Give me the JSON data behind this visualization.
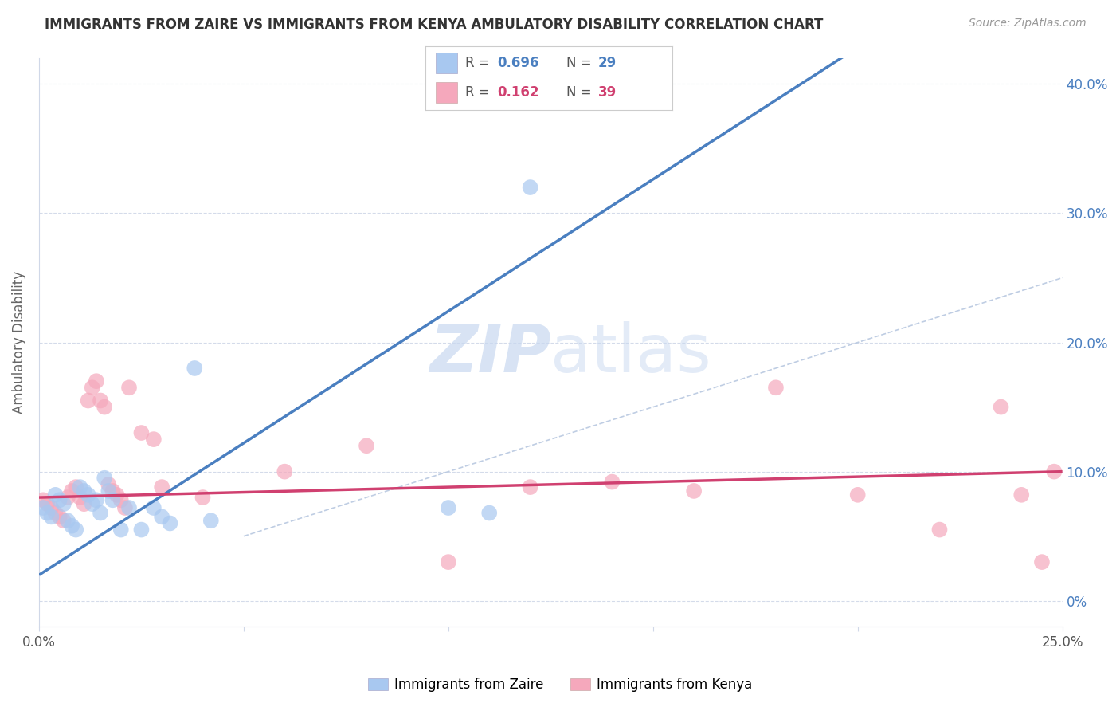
{
  "title": "IMMIGRANTS FROM ZAIRE VS IMMIGRANTS FROM KENYA AMBULATORY DISABILITY CORRELATION CHART",
  "source": "Source: ZipAtlas.com",
  "ylabel": "Ambulatory Disability",
  "xlim": [
    0.0,
    0.25
  ],
  "ylim": [
    -0.02,
    0.42
  ],
  "zaire_R": 0.696,
  "zaire_N": 29,
  "kenya_R": 0.162,
  "kenya_N": 39,
  "zaire_color": "#a8c8f0",
  "kenya_color": "#f5a8bc",
  "line_zaire_color": "#4a7fc0",
  "line_kenya_color": "#d04070",
  "diagonal_color": "#b8c8e0",
  "background_color": "#ffffff",
  "grid_color": "#d0d8e8",
  "zaire_points_x": [
    0.001,
    0.002,
    0.003,
    0.004,
    0.005,
    0.006,
    0.007,
    0.008,
    0.009,
    0.01,
    0.011,
    0.012,
    0.013,
    0.014,
    0.015,
    0.016,
    0.017,
    0.018,
    0.02,
    0.022,
    0.025,
    0.028,
    0.03,
    0.032,
    0.038,
    0.042,
    0.1,
    0.11,
    0.12
  ],
  "zaire_points_y": [
    0.072,
    0.068,
    0.065,
    0.082,
    0.078,
    0.075,
    0.062,
    0.058,
    0.055,
    0.088,
    0.085,
    0.082,
    0.075,
    0.078,
    0.068,
    0.095,
    0.085,
    0.078,
    0.055,
    0.072,
    0.055,
    0.072,
    0.065,
    0.06,
    0.18,
    0.062,
    0.072,
    0.068,
    0.32
  ],
  "kenya_points_x": [
    0.001,
    0.002,
    0.003,
    0.004,
    0.005,
    0.006,
    0.007,
    0.008,
    0.009,
    0.01,
    0.011,
    0.012,
    0.013,
    0.014,
    0.015,
    0.016,
    0.017,
    0.018,
    0.019,
    0.02,
    0.021,
    0.022,
    0.025,
    0.028,
    0.03,
    0.04,
    0.06,
    0.08,
    0.1,
    0.12,
    0.14,
    0.16,
    0.18,
    0.2,
    0.22,
    0.235,
    0.24,
    0.245,
    0.248
  ],
  "kenya_points_y": [
    0.078,
    0.075,
    0.072,
    0.068,
    0.065,
    0.062,
    0.08,
    0.085,
    0.088,
    0.08,
    0.075,
    0.155,
    0.165,
    0.17,
    0.155,
    0.15,
    0.09,
    0.085,
    0.082,
    0.078,
    0.072,
    0.165,
    0.13,
    0.125,
    0.088,
    0.08,
    0.1,
    0.12,
    0.03,
    0.088,
    0.092,
    0.085,
    0.165,
    0.082,
    0.055,
    0.15,
    0.082,
    0.03,
    0.1
  ],
  "zaire_line_x0": 0.0,
  "zaire_line_y0": 0.02,
  "zaire_line_x1": 0.12,
  "zaire_line_y1": 0.265,
  "kenya_line_x0": 0.0,
  "kenya_line_y0": 0.08,
  "kenya_line_x1": 0.25,
  "kenya_line_y1": 0.1,
  "watermark": "ZIPatlas",
  "watermark_color": "#c8d8f0"
}
